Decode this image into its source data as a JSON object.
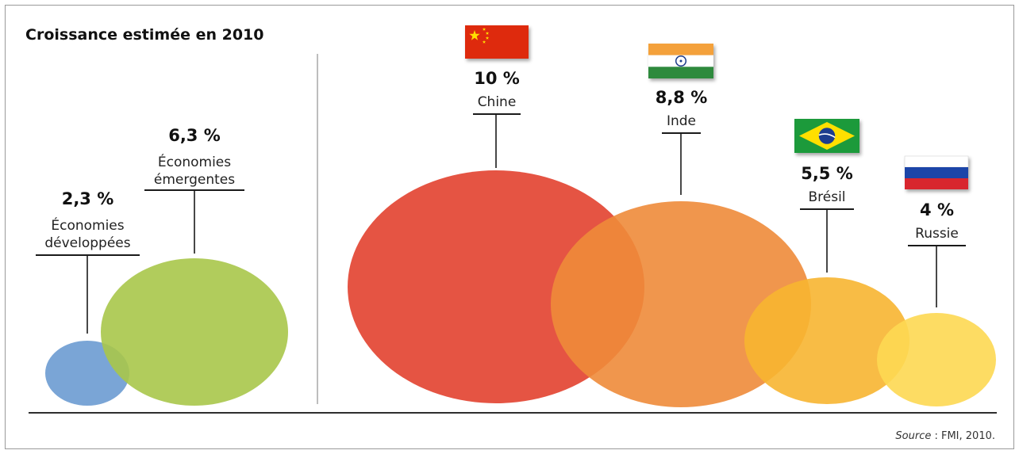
{
  "chart_data": {
    "type": "bubble",
    "title": "Croissance estimée en 2010",
    "unit": "%",
    "groups": [
      {
        "name": "aggregates",
        "items": [
          {
            "label_lines": [
              "Économies",
              "développées"
            ],
            "value": 2.3,
            "value_label": "2,3 %",
            "color": "#6b9bd1"
          },
          {
            "label_lines": [
              "Économies",
              "émergentes"
            ],
            "value": 6.3,
            "value_label": "6,3 %",
            "color": "#a8c64a"
          }
        ]
      },
      {
        "name": "countries",
        "items": [
          {
            "label_lines": [
              "Chine"
            ],
            "value": 10,
            "value_label": "10 %",
            "color": "#e2412f",
            "flag": "china-flag"
          },
          {
            "label_lines": [
              "Inde"
            ],
            "value": 8.8,
            "value_label": "8,8 %",
            "color": "#ee8b3a",
            "flag": "india-flag"
          },
          {
            "label_lines": [
              "Brésil"
            ],
            "value": 5.5,
            "value_label": "5,5 %",
            "color": "#f7b531",
            "flag": "brazil-flag"
          },
          {
            "label_lines": [
              "Russie"
            ],
            "value": 4,
            "value_label": "4 %",
            "color": "#fdd852",
            "flag": "russia-flag"
          }
        ]
      }
    ],
    "source": {
      "prefix": "Source",
      "text": " : FMI, 2010."
    }
  }
}
